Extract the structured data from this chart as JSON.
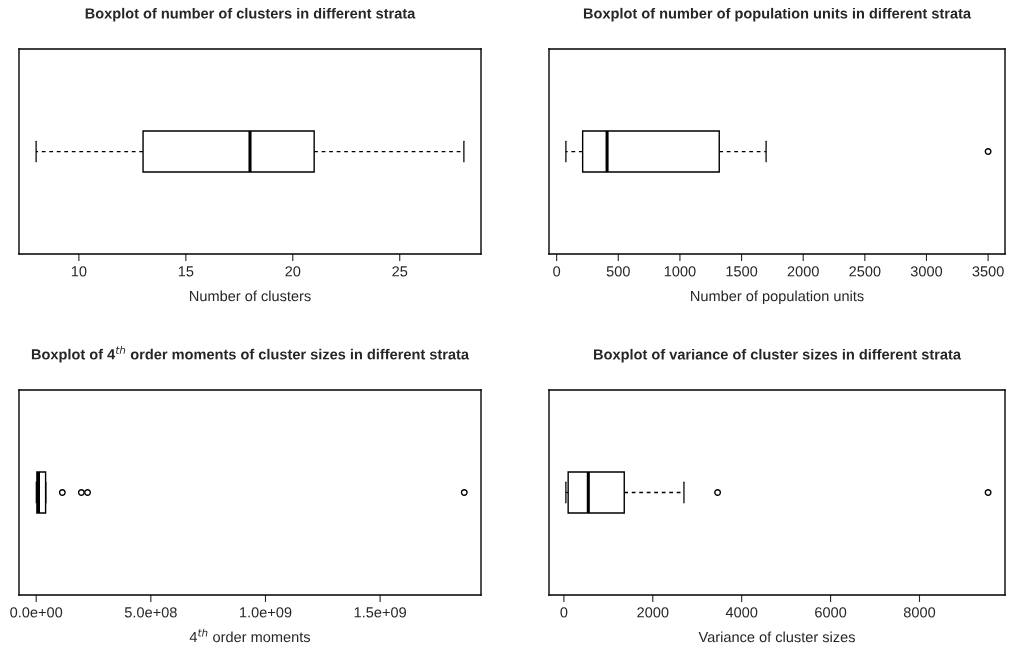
{
  "chart_data": [
    {
      "type": "box",
      "title": "Boxplot of number of clusters in different strata",
      "xlabel": "Number of clusters",
      "orientation": "horizontal",
      "categories": [
        null
      ],
      "boxes": [
        {
          "low": 8,
          "q1": 13,
          "median": 18,
          "q3": 21,
          "high": 28
        }
      ],
      "xlim": [
        7.2,
        28.8
      ],
      "xticks": [
        10,
        15,
        20,
        25
      ],
      "tick_labels": "x"
    },
    {
      "type": "box",
      "title": "Boxplot of number of population units in different strata",
      "xlabel": "Number of population units",
      "orientation": "horizontal",
      "categories": [
        null
      ],
      "boxes": [
        {
          "low": 75,
          "q1": 211,
          "median": 409,
          "q3": 1319,
          "high": 1699,
          "outliers": [
            3500
          ]
        }
      ],
      "xlim": [
        -62,
        3637
      ],
      "xticks": [
        0,
        500,
        1000,
        1500,
        2000,
        2500,
        3000,
        3500
      ],
      "tick_labels": "x"
    },
    {
      "type": "box",
      "title": "Boxplot of 4$^{th}$ order moments of cluster sizes in different strata",
      "xlabel": "4$^{th}$ order moments",
      "orientation": "horizontal",
      "categories": [
        null
      ],
      "boxes": [
        {
          "low": 500000,
          "q1": 3000000,
          "median": 10000000,
          "q3": 41000000,
          "high": 42000000,
          "outliers": [
            114000000,
            197000000,
            224000000,
            1867000000
          ]
        }
      ],
      "xlim": [
        -75000000,
        1940000000
      ],
      "xticks": [
        {
          "value": 0,
          "label": "0.0e+00"
        },
        {
          "value": 500000000,
          "label": "5.0e+08"
        },
        {
          "value": 1000000000,
          "label": "1.0e+09"
        },
        {
          "value": 1500000000,
          "label": "1.5e+09"
        }
      ],
      "tick_labels": "x"
    },
    {
      "type": "box",
      "title": "Boxplot of variance of cluster sizes in different strata",
      "xlabel": "Variance of cluster sizes",
      "orientation": "horizontal",
      "categories": [
        null
      ],
      "boxes": [
        {
          "low": 45,
          "q1": 96,
          "median": 549,
          "q3": 1358,
          "high": 2701,
          "outliers": [
            3458,
            9544
          ]
        }
      ],
      "xlim": [
        -335,
        9924
      ],
      "xticks": [
        0,
        2000,
        4000,
        6000,
        8000
      ],
      "tick_labels": "x"
    }
  ]
}
